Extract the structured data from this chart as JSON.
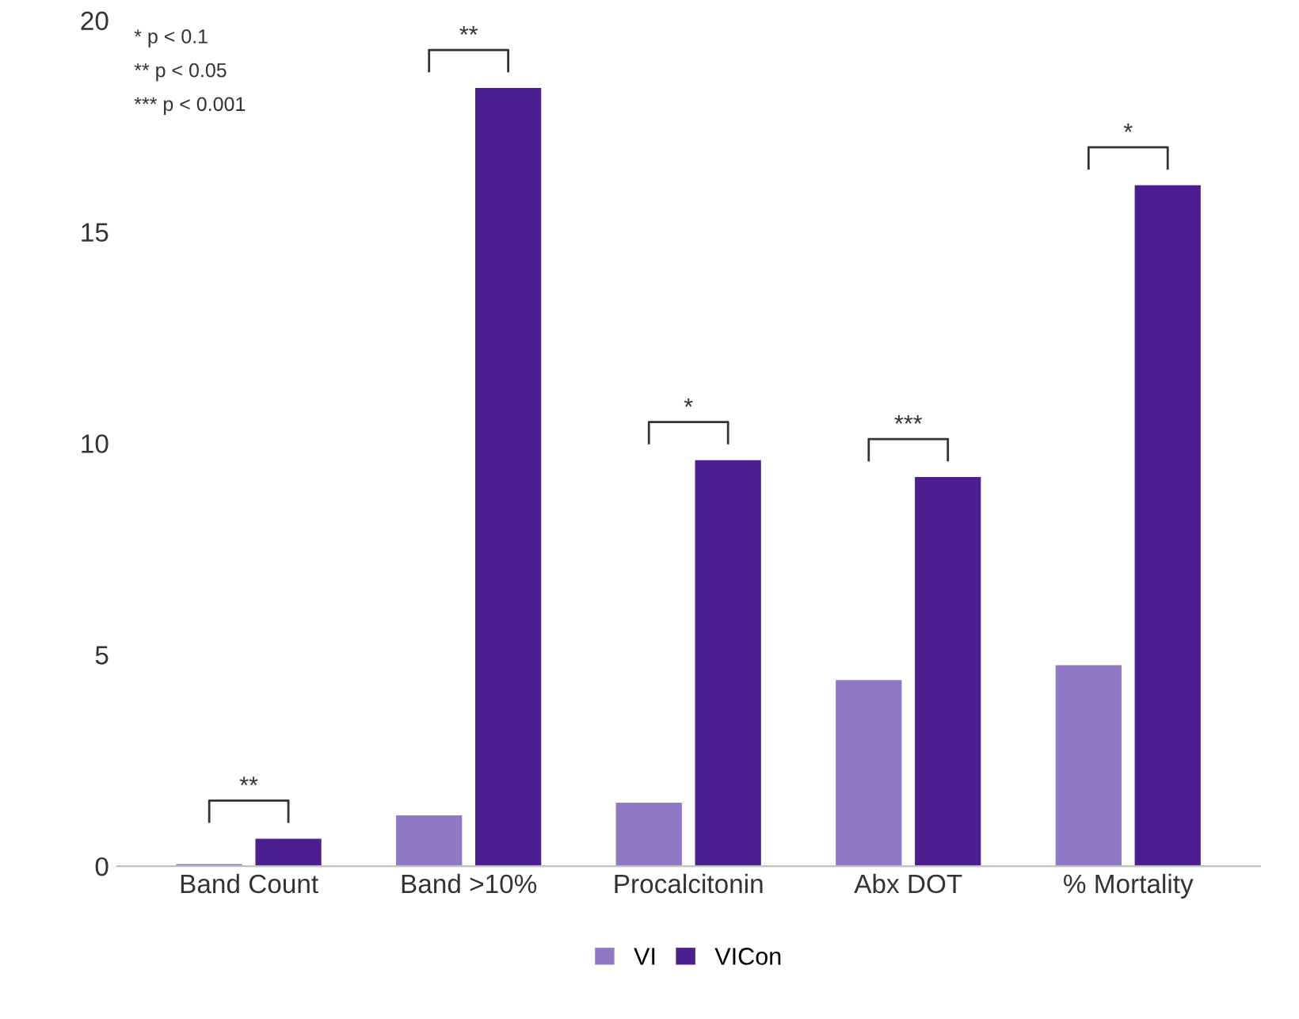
{
  "chart_data": {
    "type": "bar",
    "categories": [
      "Band Count",
      "Band >10%",
      "Procalcitonin",
      "Abx DOT",
      "% Mortality"
    ],
    "series": [
      {
        "name": "VI",
        "color": "#8e79c6",
        "values": [
          0.05,
          1.2,
          1.5,
          4.4,
          4.75
        ]
      },
      {
        "name": "VICon",
        "color": "#4b1f8f",
        "values": [
          0.65,
          18.4,
          9.6,
          9.2,
          16.1
        ]
      }
    ],
    "ylim": [
      0,
      20
    ],
    "yticks": [
      0,
      5,
      10,
      15,
      20
    ],
    "grid": false,
    "legend": "bottom",
    "annotations": [
      "* p < 0.1",
      "** p < 0.05",
      "*** p < 0.001",
      "**",
      "**",
      "*",
      "***",
      "*"
    ]
  }
}
